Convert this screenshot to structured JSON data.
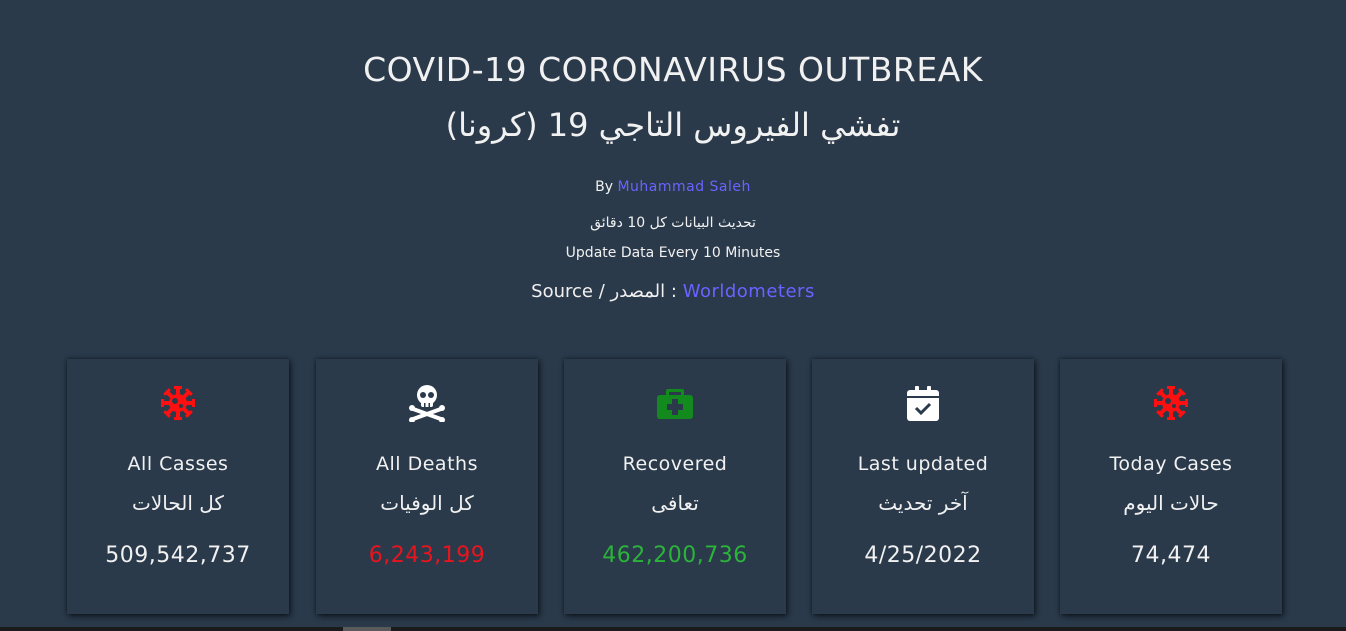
{
  "header": {
    "title_en": "COVID-19 CORONAVIRUS OUTBREAK",
    "title_ar": "تفشي الفيروس التاجي 19 (كرونا)",
    "by_label": "By",
    "author": "Muhammad Saleh",
    "update_ar": "تحديث البيانات كل 10 دقائق",
    "update_en": "Update Data Every 10 Minutes",
    "source_label": "Source / المصدر :",
    "source_link": "Worldometers"
  },
  "colors": {
    "background": "#2a3a4b",
    "link": "#6b63ff",
    "danger": "#e8141e",
    "success": "#2bb33a"
  },
  "cards": [
    {
      "icon": "virus-icon",
      "label_en": "All Casses",
      "label_ar": "كل الحالات",
      "value": "509,542,737"
    },
    {
      "icon": "skull-crossbones-icon",
      "label_en": "All Deaths",
      "label_ar": "كل الوفيات",
      "value": "6,243,199"
    },
    {
      "icon": "medkit-icon",
      "label_en": "Recovered",
      "label_ar": "تعافى",
      "value": "462,200,736"
    },
    {
      "icon": "calendar-check-icon",
      "label_en": "Last updated",
      "label_ar": "آخر تحديث",
      "value": "4/25/2022"
    },
    {
      "icon": "virus-icon",
      "label_en": "Today Cases",
      "label_ar": "حالات اليوم",
      "value": "74,474"
    }
  ]
}
